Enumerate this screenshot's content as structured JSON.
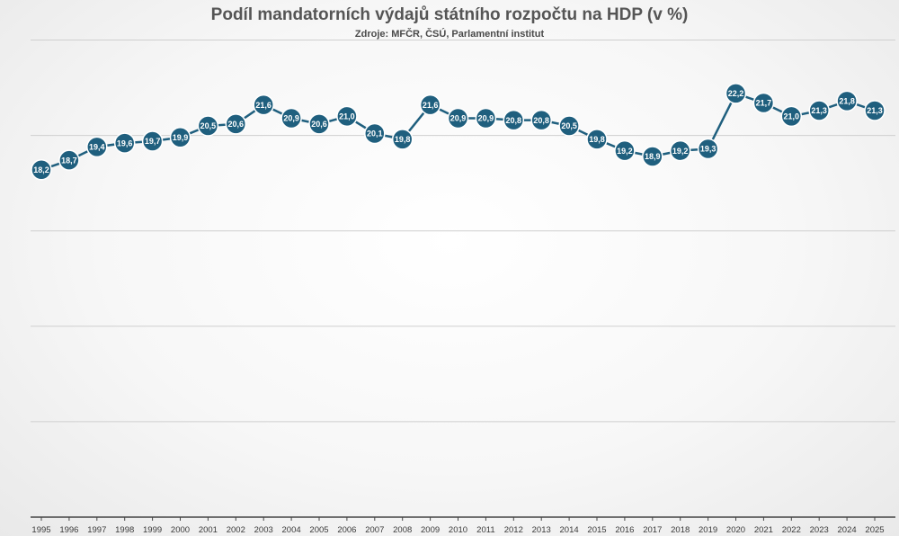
{
  "chart_data": {
    "type": "line",
    "title": "Podíl mandatorních výdajů státního rozpočtu na HDP (v %)",
    "subtitle": "Zdroje: MFČR, ČSÚ, Parlamentní institut",
    "categories": [
      "1995",
      "1996",
      "1997",
      "1998",
      "1999",
      "2000",
      "2001",
      "2002",
      "2003",
      "2004",
      "2005",
      "2006",
      "2007",
      "2008",
      "2009",
      "2010",
      "2011",
      "2012",
      "2013",
      "2014",
      "2015",
      "2016",
      "2017",
      "2018",
      "2019",
      "2020",
      "2021",
      "2022",
      "2023",
      "2024",
      "2025"
    ],
    "series": [
      {
        "values": [
          18.2,
          18.7,
          19.4,
          19.6,
          19.7,
          19.9,
          20.5,
          20.6,
          21.6,
          20.9,
          20.6,
          21.0,
          20.1,
          19.8,
          21.6,
          20.9,
          20.9,
          20.8,
          20.8,
          20.5,
          19.8,
          19.2,
          18.9,
          19.2,
          19.3,
          22.2,
          21.7,
          21.0,
          21.3,
          21.8,
          21.3
        ],
        "labels": [
          "18,2",
          "18,7",
          "19,4",
          "19,6",
          "19,7",
          "19,9",
          "20,5",
          "20,6",
          "21,6",
          "20,9",
          "20,6",
          "21,0",
          "20,1",
          "19,8",
          "21,6",
          "20,9",
          "20,9",
          "20,8",
          "20,8",
          "20,5",
          "19,8",
          "19,2",
          "18,9",
          "19,2",
          "19,3",
          "22,2",
          "21,7",
          "21,0",
          "21,3",
          "21,8",
          "21,3"
        ]
      }
    ],
    "ylim": [
      0,
      25
    ],
    "grid": true,
    "xlabel": "",
    "ylabel": "",
    "colors": {
      "line": "#1f5f7e",
      "marker": "#1f5f7e",
      "marker_stroke": "#ffffff",
      "grid": "#cfcfcf",
      "axis": "#444444"
    }
  }
}
